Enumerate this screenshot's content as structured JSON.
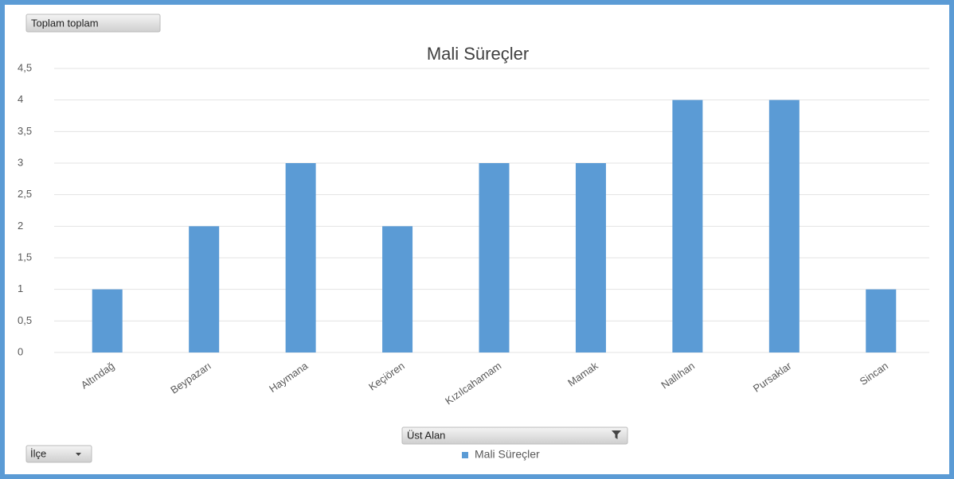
{
  "chart_data": {
    "type": "bar",
    "title": "Mali Süreçler",
    "categories": [
      "Altındağ",
      "Beypazarı",
      "Haymana",
      "Keçiören",
      "Kızılcahamam",
      "Mamak",
      "Nallıhan",
      "Pursaklar",
      "Sincan"
    ],
    "series": [
      {
        "name": "Mali Süreçler",
        "color": "#5b9bd5",
        "values": [
          1,
          2,
          3,
          2,
          3,
          3,
          4,
          4,
          1
        ]
      }
    ],
    "ylim": [
      0,
      4.5
    ],
    "yticks": [
      0,
      {
        "value": 0.5,
        "label": "0,5"
      },
      1,
      {
        "value": 1.5,
        "label": "1,5"
      },
      2,
      {
        "value": 2.5,
        "label": "2,5"
      },
      3,
      {
        "value": 3.5,
        "label": "3,5"
      },
      4,
      {
        "value": 4.5,
        "label": "4,5"
      }
    ],
    "grid": true
  },
  "pivot_buttons": {
    "report_filter": "Toplam toplam",
    "column_field": "Üst Alan",
    "row_field": "İlçe"
  }
}
